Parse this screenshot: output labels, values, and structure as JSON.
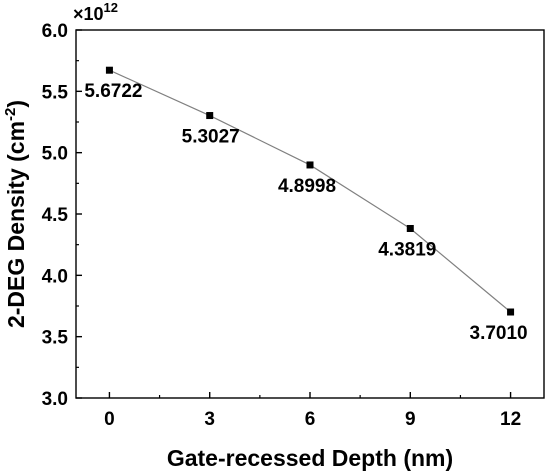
{
  "chart_data": {
    "type": "line",
    "xlabel": "Gate-recessed Depth (nm)",
    "ylabel_main": "2-DEG Density (cm",
    "ylabel_sup": "-2",
    "ylabel_close": ")",
    "y_multiplier_base": "×10",
    "y_multiplier_exp": "12",
    "xlim": [
      -1,
      13
    ],
    "ylim": [
      3.0,
      6.0
    ],
    "x_ticks": [
      0,
      3,
      6,
      9,
      12
    ],
    "x_tick_labels": [
      "0",
      "3",
      "6",
      "9",
      "12"
    ],
    "y_ticks": [
      3.0,
      3.5,
      4.0,
      4.5,
      5.0,
      5.5,
      6.0
    ],
    "y_tick_labels": [
      "3.0",
      "3.5",
      "4.0",
      "4.5",
      "5.0",
      "5.5",
      "6.0"
    ],
    "grid": false,
    "series": [
      {
        "x": [
          0,
          3,
          6,
          9,
          12
        ],
        "values": [
          5.6722,
          5.3027,
          4.8998,
          4.3819,
          3.701
        ],
        "labels": [
          "5.6722",
          "5.3027",
          "4.8998",
          "4.3819",
          "3.7010"
        ],
        "color": "#000000",
        "line_color": "#808080",
        "marker": "square"
      }
    ]
  }
}
